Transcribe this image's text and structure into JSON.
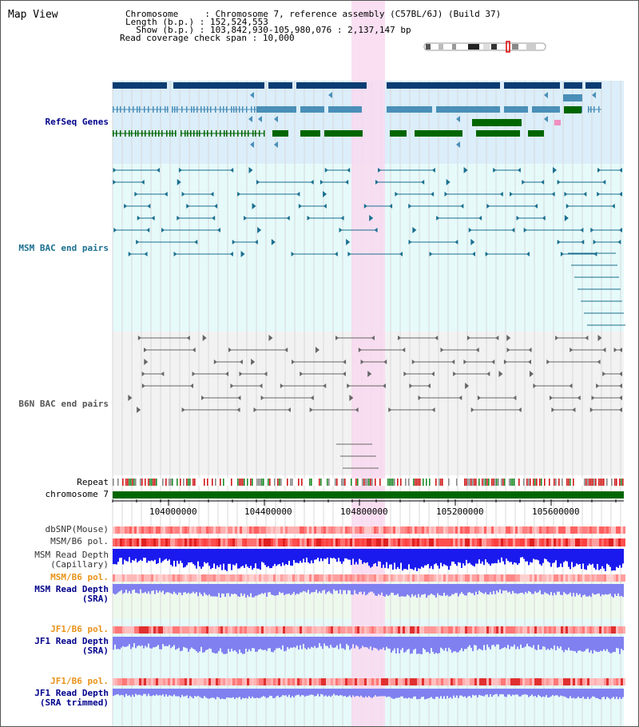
{
  "title": "Map View",
  "header": {
    "chromosome_key": "Chromosome     ",
    "chromosome_val": "Chromosome 7, reference assembly (C57BL/6J) (Build 37)",
    "length_key": "Length (b.p.) ",
    "length_val": "152,524,553",
    "show_key": "  Show (b.p.) ",
    "show_val": "103,842,930-105,980,076 : 2,137,147 bp",
    "span_key": "Read coverage check span ",
    "span_val": "10,000",
    "sep": ":"
  },
  "tracks": {
    "refseq": "RefSeq Genes",
    "msm_bac": "MSM BAC end pairs",
    "b6n_bac": "B6N BAC end pairs",
    "repeat": "Repeat",
    "chromosome": "chromosome 7",
    "dbsnp": "dbSNP(Mouse)",
    "msm_b6_pol": "MSM/B6 pol.",
    "msm_depth_cap_1": "MSM Read Depth",
    "msm_depth_cap_2": "(Capillary)",
    "msm_b6_pol_sra": "MSM/B6 pol.",
    "msm_depth_sra_1": "MSM Read Depth",
    "msm_depth_sra_2": "(SRA)",
    "jf1_b6_pol": "JF1/B6 pol.",
    "jf1_depth_1": "JF1 Read Depth",
    "jf1_depth_2": "(SRA)",
    "jf1_b6_pol_trim": "JF1/B6 pol.",
    "jf1_trim_1": "JF1 Read Depth",
    "jf1_trim_2": "(SRA trimmed)"
  },
  "axis_ticks": [
    "104000000",
    "104400000",
    "104800000",
    "105200000",
    "105600000"
  ],
  "colors": {
    "refseq_bg": "#dbeefa",
    "msm_bg": "#e6fafa",
    "b6n_bg": "#f2f2f2",
    "highlight": "#f9d9f0",
    "gene_dark": "#0b3d73",
    "gene_mid": "#4a8fb8",
    "gene_green": "#006600",
    "msm_label": "#1a6f8f",
    "b6n_label": "#555555",
    "label_blue": "#00008b",
    "label_orange": "#e8931a",
    "depth_blue": "#1a1aee",
    "depth_light": "#8080f0"
  }
}
